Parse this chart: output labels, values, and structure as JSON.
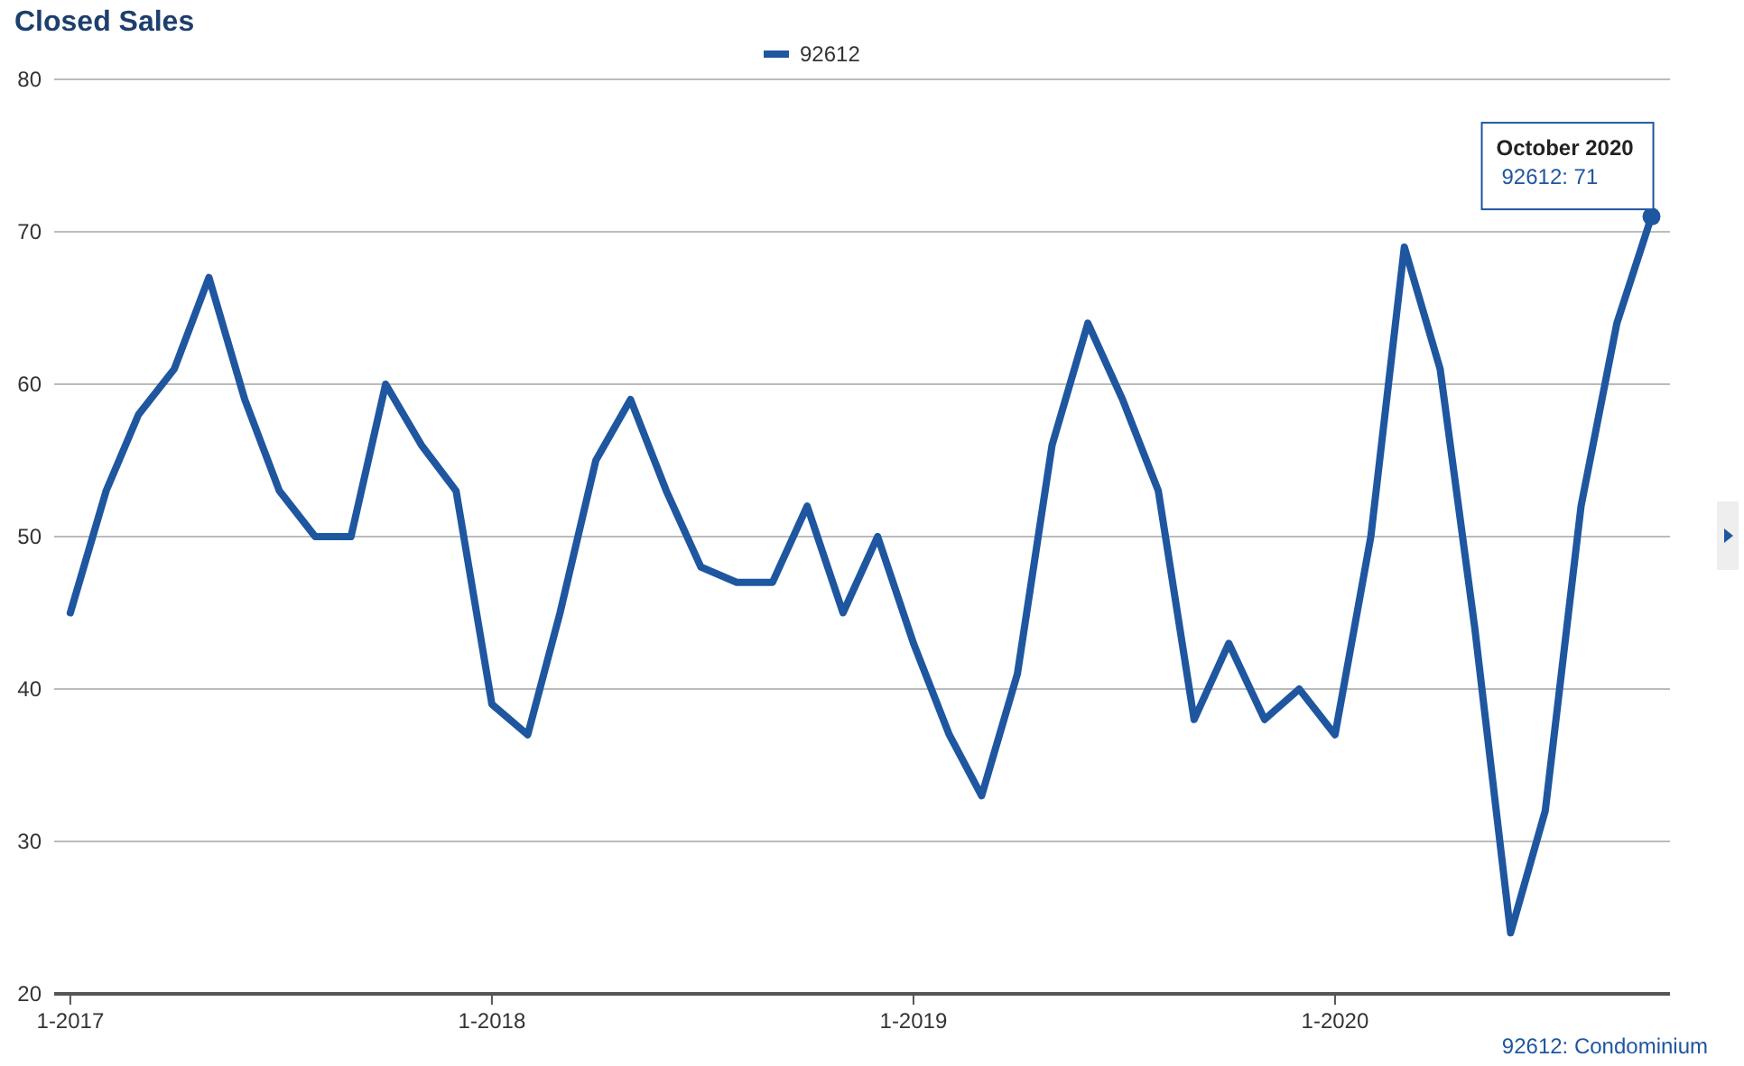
{
  "chart_data": {
    "type": "line",
    "title": "Closed Sales",
    "x": [
      "2017-01",
      "2017-02",
      "2017-03",
      "2017-04",
      "2017-05",
      "2017-06",
      "2017-07",
      "2017-08",
      "2017-09",
      "2017-10",
      "2017-11",
      "2017-12",
      "2018-01",
      "2018-02",
      "2018-03",
      "2018-04",
      "2018-05",
      "2018-06",
      "2018-07",
      "2018-08",
      "2018-09",
      "2018-10",
      "2018-11",
      "2018-12",
      "2019-01",
      "2019-02",
      "2019-03",
      "2019-04",
      "2019-05",
      "2019-06",
      "2019-07",
      "2019-08",
      "2019-09",
      "2019-10",
      "2019-11",
      "2019-12",
      "2020-01",
      "2020-02",
      "2020-03",
      "2020-04",
      "2020-05",
      "2020-06",
      "2020-07",
      "2020-08",
      "2020-09",
      "2020-10"
    ],
    "series": [
      {
        "name": "92612",
        "color": "#1f56a0",
        "values": [
          45,
          53,
          58,
          61,
          67,
          59,
          53,
          50,
          50,
          60,
          56,
          53,
          39,
          37,
          45,
          55,
          59,
          53,
          48,
          47,
          47,
          52,
          45,
          50,
          43,
          37,
          33,
          41,
          56,
          64,
          59,
          53,
          38,
          43,
          38,
          40,
          37,
          50,
          69,
          61,
          44,
          24,
          32,
          52,
          64,
          71
        ]
      }
    ],
    "xlim": [
      "2016-12-18",
      "2020-10-17"
    ],
    "xticks": [
      {
        "value": "2017-01",
        "label": "1-2017"
      },
      {
        "value": "2018-01",
        "label": "1-2018"
      },
      {
        "value": "2019-01",
        "label": "1-2019"
      },
      {
        "value": "2020-01",
        "label": "1-2020"
      }
    ],
    "ylim": [
      20,
      80
    ],
    "yticks": [
      20,
      30,
      40,
      50,
      60,
      70,
      80
    ],
    "grid": "y",
    "legend": "top",
    "marker": "none",
    "line_style": "solid",
    "annotations": [
      {
        "text": "October 2020\n92612: 71",
        "x": "2020-10",
        "y": 71
      },
      "92612: Condominium"
    ]
  }
}
